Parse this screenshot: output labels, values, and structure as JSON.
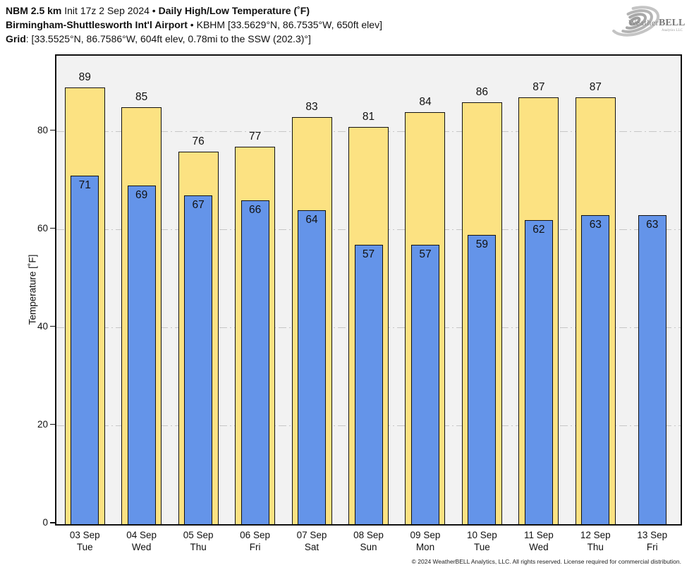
{
  "header": {
    "line1": {
      "model": "NBM 2.5 km",
      "init": " Init 17z 2 Sep 2024 ",
      "bullet": "•",
      "product": " Daily High/Low Temperature (˚F)"
    },
    "line2": {
      "station_name": "Birmingham-Shuttlesworth Intʹl Airport",
      "bullet": " • ",
      "station_details": "KBHM [33.5629°N, 86.7535°W, 650ft elev]"
    },
    "line3": {
      "label": "Grid",
      "details": ": [33.5525°N, 86.7586°W, 604ft elev, 0.78mi to the SSW (202.3)°]"
    }
  },
  "logo": {
    "brand_weather": "Weather",
    "brand_bell": "BELL",
    "subtext": "Analytics LLC"
  },
  "chart_data": {
    "type": "bar",
    "title": "Daily High/Low Temperature (°F)",
    "xlabel": "",
    "ylabel": "Temperature [˚F]",
    "ylim": [
      0,
      95.5
    ],
    "yticks": [
      0,
      20,
      40,
      60,
      80
    ],
    "grid": "horizontal-dash-dot",
    "legend_position": "none",
    "categories": [
      {
        "date": "03 Sep",
        "day": "Tue"
      },
      {
        "date": "04 Sep",
        "day": "Wed"
      },
      {
        "date": "05 Sep",
        "day": "Thu"
      },
      {
        "date": "06 Sep",
        "day": "Fri"
      },
      {
        "date": "07 Sep",
        "day": "Sat"
      },
      {
        "date": "08 Sep",
        "day": "Sun"
      },
      {
        "date": "09 Sep",
        "day": "Mon"
      },
      {
        "date": "10 Sep",
        "day": "Tue"
      },
      {
        "date": "11 Sep",
        "day": "Wed"
      },
      {
        "date": "12 Sep",
        "day": "Thu"
      },
      {
        "date": "13 Sep",
        "day": "Fri"
      }
    ],
    "series": [
      {
        "name": "High",
        "color": "#FCE282",
        "values": [
          89,
          85,
          76,
          77,
          83,
          81,
          84,
          86,
          87,
          87,
          null
        ]
      },
      {
        "name": "Low",
        "color": "#6494E9",
        "values": [
          71,
          69,
          67,
          66,
          64,
          57,
          57,
          59,
          62,
          63,
          63
        ]
      }
    ],
    "plot_background": "#f2f2f2",
    "gridline_color": "#c7c7c7"
  },
  "footer": {
    "copyright": "© 2024 WeatherBELL Analytics, LLC. All rights reserved. License required for commercial distribution."
  }
}
